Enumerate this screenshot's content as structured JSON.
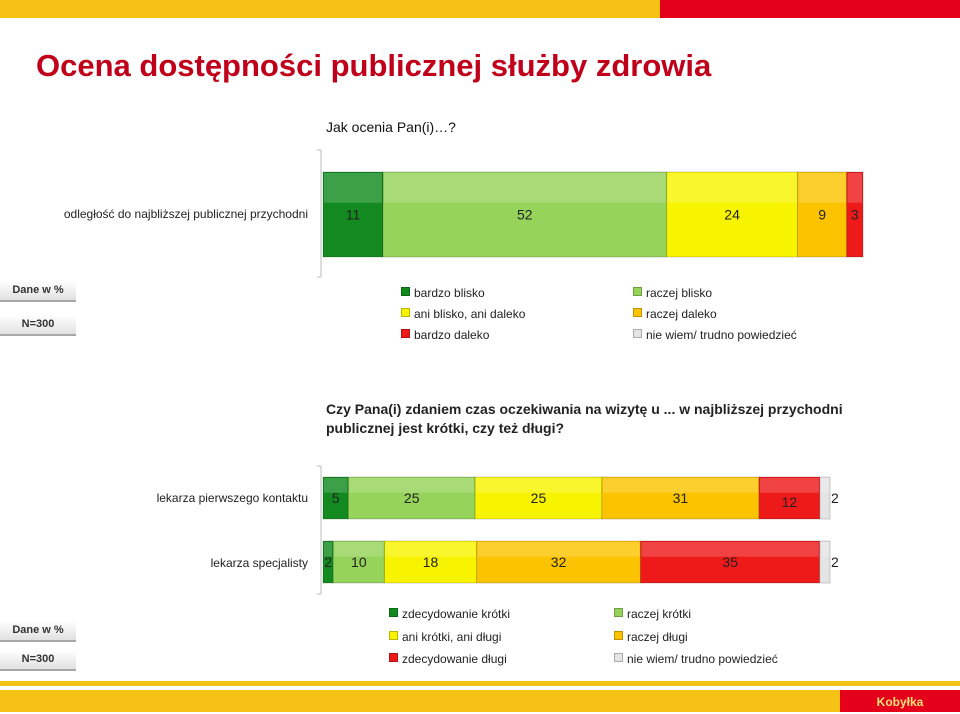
{
  "title": "Ocena dostępności publicznej służby zdrowia",
  "box_label_1": "Dane w %",
  "box_label_2": "N=300",
  "colors": {
    "dark_green": "#138a1f",
    "light_green": "#95d35a",
    "yellow": "#f8f400",
    "orange": "#fcc400",
    "red": "#ee1a1a",
    "grey": "#e4e4e4"
  },
  "chart_data": [
    {
      "type": "bar",
      "orientation": "horizontal",
      "stacked": true,
      "question": "Jak ocenia Pan(i)…?",
      "categories": [
        "odległość do najbliższej publicznej przychodni"
      ],
      "series": [
        {
          "name": "bardzo blisko",
          "color": "#138a1f",
          "values": [
            11
          ]
        },
        {
          "name": "raczej blisko",
          "color": "#95d35a",
          "values": [
            52
          ]
        },
        {
          "name": "ani blisko, ani daleko",
          "color": "#f8f400",
          "values": [
            24
          ]
        },
        {
          "name": "raczej daleko",
          "color": "#fcc400",
          "values": [
            9
          ]
        },
        {
          "name": "bardzo daleko",
          "color": "#ee1a1a",
          "values": [
            3
          ]
        },
        {
          "name": "nie wiem/ trudno powiedzieć",
          "color": "#e4e4e4",
          "values": [
            0
          ]
        }
      ],
      "value_labels": [
        [
          "11",
          "52",
          "24",
          "9",
          "3",
          ""
        ]
      ],
      "legend_order": [
        "bardzo blisko",
        "raczej blisko",
        "ani blisko, ani daleko",
        "raczej daleko",
        "bardzo daleko",
        "nie wiem/ trudno powiedzieć"
      ]
    },
    {
      "type": "bar",
      "orientation": "horizontal",
      "stacked": true,
      "question": "Czy Pana(i) zdaniem czas oczekiwania na wizytę u ... w najbliższej przychodni publicznej jest krótki, czy też długi?",
      "categories": [
        "lekarza pierwszego kontaktu",
        "lekarza specjalisty"
      ],
      "series": [
        {
          "name": "zdecydowanie krótki",
          "color": "#138a1f",
          "values": [
            5,
            2
          ]
        },
        {
          "name": "raczej krótki",
          "color": "#95d35a",
          "values": [
            25,
            10
          ]
        },
        {
          "name": "ani krótki, ani długi",
          "color": "#f8f400",
          "values": [
            25,
            18
          ]
        },
        {
          "name": "raczej długi",
          "color": "#fcc400",
          "values": [
            31,
            32
          ]
        },
        {
          "name": "zdecydowanie długi",
          "color": "#ee1a1a",
          "values": [
            12,
            35
          ]
        },
        {
          "name": "nie wiem/ trudno powiedzieć",
          "color": "#e4e4e4",
          "values": [
            2,
            2
          ]
        }
      ],
      "value_labels": [
        [
          "5",
          "25",
          "25",
          "31",
          "12",
          "2"
        ],
        [
          "2",
          "10",
          "18",
          "32",
          "35",
          "2"
        ]
      ],
      "legend_order": [
        "zdecydowanie krótki",
        "raczej krótki",
        "ani krótki, ani długi",
        "raczej długi",
        "zdecydowanie długi",
        "nie wiem/ trudno powiedzieć"
      ]
    }
  ],
  "brand": "Kobyłka"
}
